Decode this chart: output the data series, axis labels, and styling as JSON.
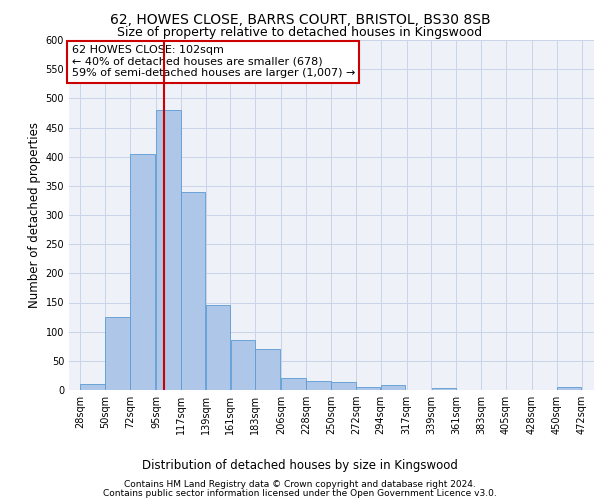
{
  "title1": "62, HOWES CLOSE, BARRS COURT, BRISTOL, BS30 8SB",
  "title2": "Size of property relative to detached houses in Kingswood",
  "xlabel": "Distribution of detached houses by size in Kingswood",
  "ylabel": "Number of detached properties",
  "footnote1": "Contains HM Land Registry data © Crown copyright and database right 2024.",
  "footnote2": "Contains public sector information licensed under the Open Government Licence v3.0.",
  "annotation_line1": "62 HOWES CLOSE: 102sqm",
  "annotation_line2": "← 40% of detached houses are smaller (678)",
  "annotation_line3": "59% of semi-detached houses are larger (1,007) →",
  "bar_left_edges": [
    28,
    50,
    72,
    95,
    117,
    139,
    161,
    183,
    206,
    228,
    250,
    272,
    294,
    317,
    339,
    361,
    383,
    405,
    428,
    450
  ],
  "bar_widths": [
    22,
    22,
    22,
    22,
    22,
    22,
    22,
    22,
    22,
    22,
    22,
    22,
    22,
    22,
    22,
    22,
    22,
    22,
    22,
    22
  ],
  "bar_heights": [
    10,
    125,
    405,
    480,
    340,
    145,
    85,
    70,
    20,
    15,
    13,
    5,
    8,
    0,
    4,
    0,
    0,
    0,
    0,
    5
  ],
  "tick_labels": [
    "28sqm",
    "50sqm",
    "72sqm",
    "95sqm",
    "117sqm",
    "139sqm",
    "161sqm",
    "183sqm",
    "206sqm",
    "228sqm",
    "250sqm",
    "272sqm",
    "294sqm",
    "317sqm",
    "339sqm",
    "361sqm",
    "383sqm",
    "405sqm",
    "428sqm",
    "450sqm",
    "472sqm"
  ],
  "bar_color": "#aec6e8",
  "bar_edge_color": "#5b9bd5",
  "vline_x": 102,
  "vline_color": "#cc0000",
  "ylim": [
    0,
    600
  ],
  "yticks": [
    0,
    50,
    100,
    150,
    200,
    250,
    300,
    350,
    400,
    450,
    500,
    550,
    600
  ],
  "grid_color": "#c8d4e8",
  "bg_color": "#eef2f8",
  "box_color": "#cc0000",
  "title_fontsize": 10,
  "subtitle_fontsize": 9,
  "axis_label_fontsize": 8.5,
  "tick_fontsize": 7,
  "annotation_fontsize": 8,
  "footnote_fontsize": 6.5
}
